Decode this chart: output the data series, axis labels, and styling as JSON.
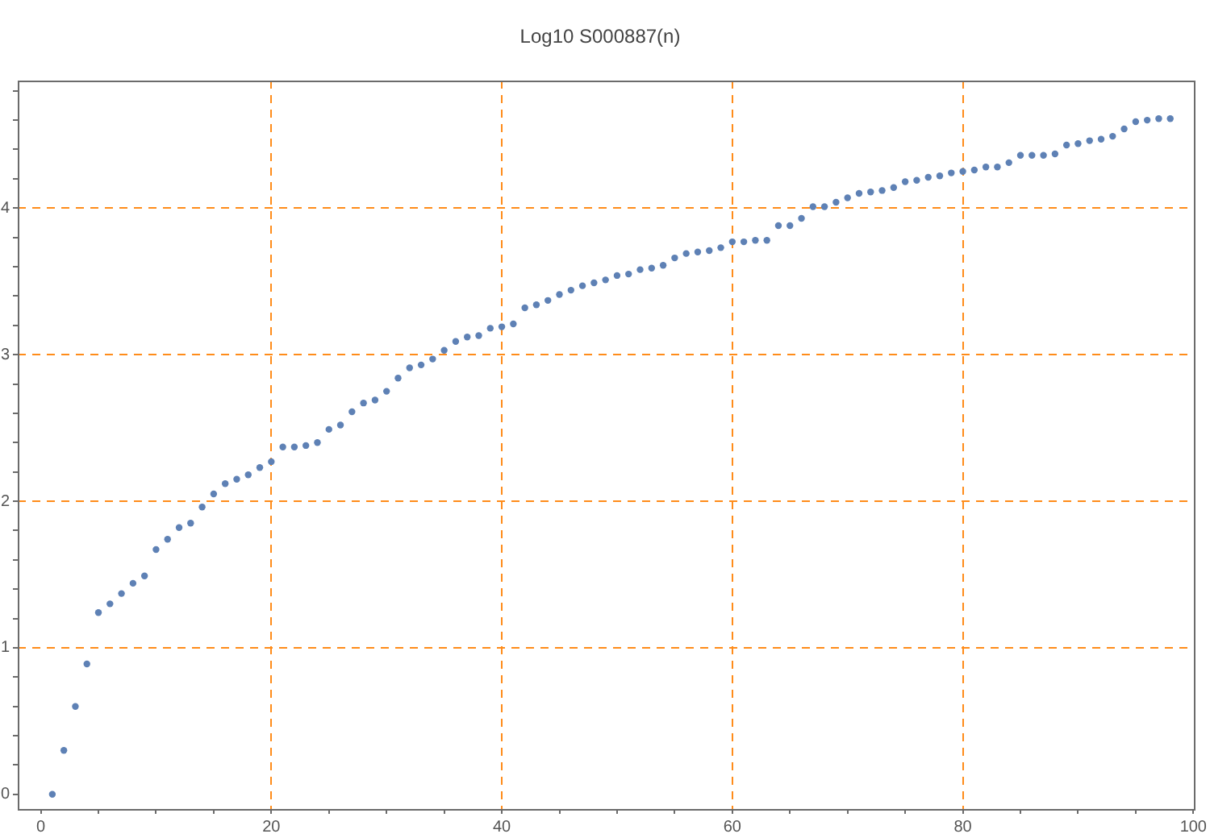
{
  "chart_data": {
    "type": "scatter",
    "title": "Log10 S000887(n)",
    "x": [
      1,
      2,
      3,
      4,
      5,
      6,
      7,
      8,
      9,
      10,
      11,
      12,
      13,
      14,
      15,
      16,
      17,
      18,
      19,
      20,
      21,
      22,
      23,
      24,
      25,
      26,
      27,
      28,
      29,
      30,
      31,
      32,
      33,
      34,
      35,
      36,
      37,
      38,
      39,
      40,
      41,
      42,
      43,
      44,
      45,
      46,
      47,
      48,
      49,
      50,
      51,
      52,
      53,
      54,
      55,
      56,
      57,
      58,
      59,
      60,
      61,
      62,
      63,
      64,
      65,
      66,
      67,
      68,
      69,
      70,
      71,
      72,
      73,
      74,
      75,
      76,
      77,
      78,
      79,
      80,
      81,
      82,
      83,
      84,
      85,
      86,
      87,
      88,
      89,
      90,
      91,
      92,
      93,
      94,
      95,
      96,
      97,
      98
    ],
    "values": [
      0,
      0.3,
      0.6,
      0.89,
      1.24,
      1.3,
      1.37,
      1.44,
      1.49,
      1.67,
      1.74,
      1.82,
      1.85,
      1.96,
      2.05,
      2.12,
      2.15,
      2.18,
      2.23,
      2.27,
      2.37,
      2.37,
      2.38,
      2.4,
      2.49,
      2.52,
      2.61,
      2.67,
      2.69,
      2.75,
      2.84,
      2.91,
      2.93,
      2.97,
      3.03,
      3.09,
      3.12,
      3.13,
      3.18,
      3.19,
      3.21,
      3.32,
      3.34,
      3.37,
      3.41,
      3.44,
      3.47,
      3.49,
      3.51,
      3.54,
      3.55,
      3.58,
      3.59,
      3.61,
      3.66,
      3.69,
      3.7,
      3.71,
      3.73,
      3.77,
      3.77,
      3.78,
      3.78,
      3.88,
      3.88,
      3.93,
      4.01,
      4.01,
      4.04,
      4.07,
      4.1,
      4.11,
      4.12,
      4.14,
      4.18,
      4.19,
      4.21,
      4.22,
      4.24,
      4.25,
      4.26,
      4.28,
      4.28,
      4.31,
      4.36,
      4.36,
      4.36,
      4.37,
      4.43,
      4.44,
      4.46,
      4.47,
      4.49,
      4.54,
      4.59,
      4.6,
      4.61,
      4.61
    ],
    "color": "#5e81b5",
    "marker": "circle",
    "grid": true,
    "xlim": [
      -2,
      100
    ],
    "ylim": [
      -0.1,
      4.87
    ],
    "xticks": [
      0,
      {
        "value": 5,
        "label": null
      },
      {
        "value": 10,
        "label": null
      },
      {
        "value": 15,
        "label": null
      },
      20,
      {
        "value": 25,
        "label": null
      },
      {
        "value": 30,
        "label": null
      },
      {
        "value": 35,
        "label": null
      },
      40,
      {
        "value": 45,
        "label": null
      },
      {
        "value": 50,
        "label": null
      },
      {
        "value": 55,
        "label": null
      },
      60,
      {
        "value": 65,
        "label": null
      },
      {
        "value": 70,
        "label": null
      },
      {
        "value": 75,
        "label": null
      },
      80,
      {
        "value": 85,
        "label": null
      },
      {
        "value": 90,
        "label": null
      },
      {
        "value": 95,
        "label": null
      },
      100
    ],
    "yticks": [
      0,
      {
        "value": 0.2,
        "label": null
      },
      {
        "value": 0.4,
        "label": null
      },
      {
        "value": 0.6,
        "label": null
      },
      {
        "value": 0.8,
        "label": null
      },
      1,
      {
        "value": 1.2,
        "label": null
      },
      {
        "value": 1.4,
        "label": null
      },
      {
        "value": 1.6,
        "label": null
      },
      {
        "value": 1.8,
        "label": null
      },
      2,
      {
        "value": 2.2,
        "label": null
      },
      {
        "value": 2.4,
        "label": null
      },
      {
        "value": 2.6,
        "label": null
      },
      {
        "value": 2.8,
        "label": null
      },
      3,
      {
        "value": 3.2,
        "label": null
      },
      {
        "value": 3.4,
        "label": null
      },
      {
        "value": 3.6,
        "label": null
      },
      {
        "value": 3.8,
        "label": null
      },
      4,
      {
        "value": 4.2,
        "label": null
      },
      {
        "value": 4.4,
        "label": null
      },
      {
        "value": 4.6,
        "label": null
      },
      {
        "value": 4.8,
        "label": null
      }
    ]
  }
}
